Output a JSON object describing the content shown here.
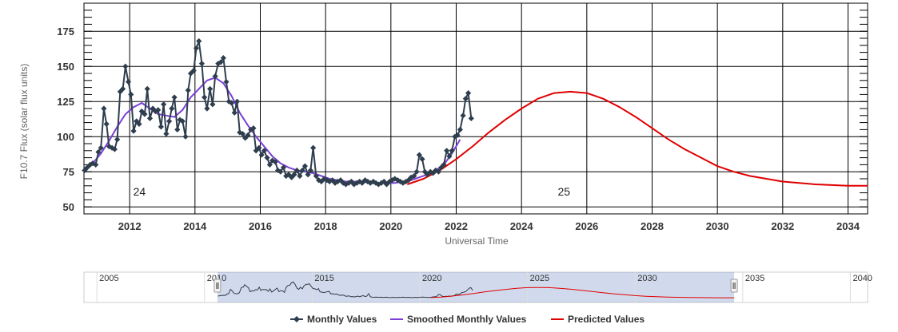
{
  "chart_data": {
    "type": "line",
    "xlabel": "Universal Time",
    "ylabel": "F10.7 Flux (solar flux units)",
    "xlim": [
      2010.6,
      2034.6
    ],
    "ylim": [
      45,
      195
    ],
    "y_ticks": [
      50,
      75,
      100,
      125,
      150,
      175
    ],
    "x_ticks": [
      2012,
      2014,
      2016,
      2018,
      2020,
      2022,
      2024,
      2026,
      2028,
      2030,
      2032,
      2034
    ],
    "grid": true,
    "legend_position": "bottom",
    "cycle_labels": [
      {
        "text": "24",
        "x": 2012.3,
        "y": 58
      },
      {
        "text": "25",
        "x": 2025.3,
        "y": 58
      }
    ],
    "series": [
      {
        "name": "Monthly Values",
        "color": "#2f3e4e",
        "marker": "diamond",
        "points": [
          [
            2010.62,
            76
          ],
          [
            2010.7,
            78
          ],
          [
            2010.79,
            80
          ],
          [
            2010.87,
            81
          ],
          [
            2010.96,
            80
          ],
          [
            2011.04,
            89
          ],
          [
            2011.12,
            92
          ],
          [
            2011.21,
            120
          ],
          [
            2011.29,
            109
          ],
          [
            2011.37,
            93
          ],
          [
            2011.46,
            92
          ],
          [
            2011.54,
            91
          ],
          [
            2011.62,
            98
          ],
          [
            2011.71,
            132
          ],
          [
            2011.79,
            134
          ],
          [
            2011.87,
            150
          ],
          [
            2011.96,
            139
          ],
          [
            2012.04,
            130
          ],
          [
            2012.12,
            104
          ],
          [
            2012.21,
            111
          ],
          [
            2012.29,
            109
          ],
          [
            2012.37,
            118
          ],
          [
            2012.46,
            116
          ],
          [
            2012.54,
            134
          ],
          [
            2012.62,
            113
          ],
          [
            2012.71,
            120
          ],
          [
            2012.79,
            118
          ],
          [
            2012.87,
            119
          ],
          [
            2012.96,
            107
          ],
          [
            2013.04,
            123
          ],
          [
            2013.12,
            102
          ],
          [
            2013.21,
            111
          ],
          [
            2013.29,
            120
          ],
          [
            2013.37,
            128
          ],
          [
            2013.46,
            105
          ],
          [
            2013.54,
            112
          ],
          [
            2013.62,
            111
          ],
          [
            2013.71,
            100
          ],
          [
            2013.79,
            133
          ],
          [
            2013.87,
            145
          ],
          [
            2013.96,
            147
          ],
          [
            2014.04,
            163
          ],
          [
            2014.12,
            168
          ],
          [
            2014.21,
            152
          ],
          [
            2014.29,
            128
          ],
          [
            2014.37,
            120
          ],
          [
            2014.46,
            134
          ],
          [
            2014.54,
            123
          ],
          [
            2014.62,
            143
          ],
          [
            2014.71,
            152
          ],
          [
            2014.79,
            153
          ],
          [
            2014.87,
            156
          ],
          [
            2014.96,
            139
          ],
          [
            2015.04,
            125
          ],
          [
            2015.12,
            124
          ],
          [
            2015.21,
            117
          ],
          [
            2015.29,
            125
          ],
          [
            2015.37,
            103
          ],
          [
            2015.46,
            102
          ],
          [
            2015.54,
            99
          ],
          [
            2015.62,
            101
          ],
          [
            2015.71,
            105
          ],
          [
            2015.79,
            106
          ],
          [
            2015.87,
            90
          ],
          [
            2015.96,
            92
          ],
          [
            2016.04,
            87
          ],
          [
            2016.12,
            90
          ],
          [
            2016.21,
            85
          ],
          [
            2016.29,
            80
          ],
          [
            2016.37,
            83
          ],
          [
            2016.46,
            82
          ],
          [
            2016.54,
            76
          ],
          [
            2016.62,
            75
          ],
          [
            2016.71,
            78
          ],
          [
            2016.79,
            72
          ],
          [
            2016.87,
            73
          ],
          [
            2016.96,
            71
          ],
          [
            2017.04,
            73
          ],
          [
            2017.12,
            76
          ],
          [
            2017.21,
            72
          ],
          [
            2017.29,
            76
          ],
          [
            2017.37,
            79
          ],
          [
            2017.46,
            73
          ],
          [
            2017.54,
            76
          ],
          [
            2017.62,
            92
          ],
          [
            2017.71,
            72
          ],
          [
            2017.79,
            69
          ],
          [
            2017.87,
            68
          ],
          [
            2017.96,
            70
          ],
          [
            2018.04,
            69
          ],
          [
            2018.12,
            68
          ],
          [
            2018.21,
            69
          ],
          [
            2018.29,
            67
          ],
          [
            2018.37,
            68
          ],
          [
            2018.46,
            69
          ],
          [
            2018.54,
            67
          ],
          [
            2018.62,
            66
          ],
          [
            2018.71,
            67
          ],
          [
            2018.79,
            68
          ],
          [
            2018.87,
            66
          ],
          [
            2018.96,
            67
          ],
          [
            2019.04,
            68
          ],
          [
            2019.12,
            67
          ],
          [
            2019.21,
            69
          ],
          [
            2019.29,
            68
          ],
          [
            2019.37,
            67
          ],
          [
            2019.46,
            68
          ],
          [
            2019.54,
            67
          ],
          [
            2019.62,
            66
          ],
          [
            2019.71,
            67
          ],
          [
            2019.79,
            68
          ],
          [
            2019.87,
            66
          ],
          [
            2019.96,
            68
          ],
          [
            2020.04,
            69
          ],
          [
            2020.12,
            70
          ],
          [
            2020.21,
            69
          ],
          [
            2020.29,
            68
          ],
          [
            2020.37,
            67
          ],
          [
            2020.46,
            68
          ],
          [
            2020.54,
            69
          ],
          [
            2020.62,
            71
          ],
          [
            2020.71,
            72
          ],
          [
            2020.79,
            75
          ],
          [
            2020.87,
            87
          ],
          [
            2020.96,
            84
          ],
          [
            2021.04,
            75
          ],
          [
            2021.12,
            73
          ],
          [
            2021.21,
            75
          ],
          [
            2021.29,
            74
          ],
          [
            2021.37,
            76
          ],
          [
            2021.46,
            75
          ],
          [
            2021.54,
            78
          ],
          [
            2021.62,
            80
          ],
          [
            2021.71,
            90
          ],
          [
            2021.79,
            86
          ],
          [
            2021.87,
            90
          ],
          [
            2021.96,
            100
          ],
          [
            2022.04,
            101
          ],
          [
            2022.12,
            105
          ],
          [
            2022.21,
            115
          ],
          [
            2022.29,
            127
          ],
          [
            2022.37,
            131
          ],
          [
            2022.46,
            113
          ]
        ]
      },
      {
        "name": "Smoothed Monthly Values",
        "color": "#7b3fd8",
        "points": [
          [
            2010.62,
            76
          ],
          [
            2010.87,
            81
          ],
          [
            2011.12,
            88
          ],
          [
            2011.37,
            97
          ],
          [
            2011.62,
            107
          ],
          [
            2011.87,
            116
          ],
          [
            2012.12,
            121
          ],
          [
            2012.37,
            124
          ],
          [
            2012.62,
            120
          ],
          [
            2012.87,
            116
          ],
          [
            2013.12,
            115
          ],
          [
            2013.37,
            114
          ],
          [
            2013.62,
            119
          ],
          [
            2013.87,
            128
          ],
          [
            2014.12,
            134
          ],
          [
            2014.37,
            140
          ],
          [
            2014.62,
            142
          ],
          [
            2014.87,
            138
          ],
          [
            2015.12,
            129
          ],
          [
            2015.37,
            117
          ],
          [
            2015.62,
            108
          ],
          [
            2015.87,
            100
          ],
          [
            2016.12,
            93
          ],
          [
            2016.37,
            86
          ],
          [
            2016.62,
            81
          ],
          [
            2016.87,
            78
          ],
          [
            2017.12,
            76
          ],
          [
            2017.37,
            75
          ],
          [
            2017.62,
            74
          ],
          [
            2017.87,
            72
          ],
          [
            2018.12,
            70
          ],
          [
            2018.37,
            69
          ],
          [
            2018.62,
            68
          ],
          [
            2018.87,
            68
          ],
          [
            2019.12,
            68
          ],
          [
            2019.37,
            67
          ],
          [
            2019.62,
            67
          ],
          [
            2019.87,
            67
          ],
          [
            2020.12,
            67
          ],
          [
            2020.37,
            68
          ],
          [
            2020.62,
            69
          ],
          [
            2020.87,
            71
          ],
          [
            2021.12,
            73
          ],
          [
            2021.37,
            76
          ],
          [
            2021.62,
            80
          ],
          [
            2021.87,
            88
          ],
          [
            2022.12,
            98
          ]
        ]
      },
      {
        "name": "Predicted Values",
        "color": "#e00000",
        "points": [
          [
            2020.5,
            66
          ],
          [
            2021.0,
            70
          ],
          [
            2021.5,
            76
          ],
          [
            2022.0,
            84
          ],
          [
            2022.5,
            93
          ],
          [
            2023.0,
            103
          ],
          [
            2023.5,
            112
          ],
          [
            2024.0,
            120
          ],
          [
            2024.5,
            127
          ],
          [
            2025.0,
            131
          ],
          [
            2025.5,
            132
          ],
          [
            2026.0,
            131
          ],
          [
            2026.5,
            127
          ],
          [
            2027.0,
            121
          ],
          [
            2027.5,
            114
          ],
          [
            2028.0,
            106
          ],
          [
            2028.5,
            98
          ],
          [
            2029.0,
            91
          ],
          [
            2029.5,
            85
          ],
          [
            2030.0,
            79
          ],
          [
            2030.5,
            75
          ],
          [
            2031.0,
            72
          ],
          [
            2031.5,
            70
          ],
          [
            2032.0,
            68
          ],
          [
            2032.5,
            67
          ],
          [
            2033.0,
            66
          ],
          [
            2033.5,
            65.5
          ],
          [
            2034.0,
            65
          ],
          [
            2034.6,
            65
          ]
        ]
      }
    ],
    "navigator": {
      "xlim": [
        2004.4,
        2040.8
      ],
      "labels": [
        "2005",
        "2010",
        "2015",
        "2020",
        "2025",
        "2030",
        "2035",
        "2040"
      ],
      "selected_range": [
        2010.6,
        2034.6
      ]
    }
  }
}
